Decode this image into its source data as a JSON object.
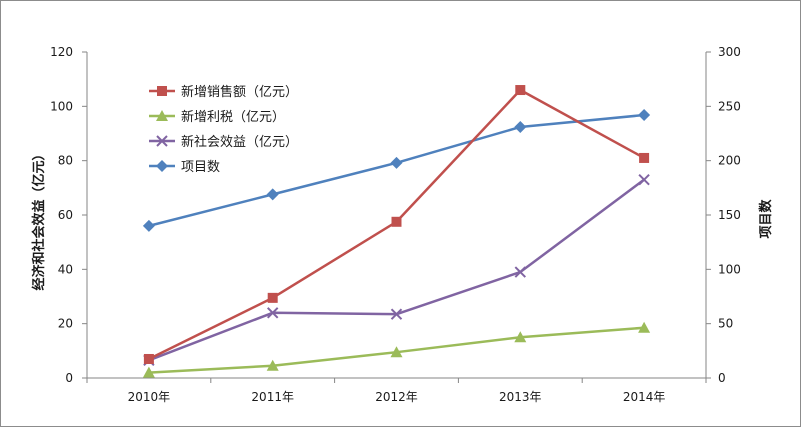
{
  "chart_data": {
    "type": "line",
    "categories": [
      "2010年",
      "2011年",
      "2012年",
      "2013年",
      "2014年"
    ],
    "ylabel": "经济和社会效益（亿元）",
    "y2label": "项目数",
    "ylim": [
      0,
      120
    ],
    "yticks": [
      0,
      20,
      40,
      60,
      80,
      100,
      120
    ],
    "y2lim": [
      0,
      300
    ],
    "y2ticks": [
      0,
      50,
      100,
      150,
      200,
      250,
      300
    ],
    "grid": false,
    "legend_position": "top-left",
    "series": [
      {
        "name": "新增销售额（亿元）",
        "axis": "left",
        "color": "#c0504d",
        "marker": "square",
        "values": [
          7,
          29.5,
          57.5,
          106,
          81
        ]
      },
      {
        "name": "新增利税（亿元）",
        "axis": "left",
        "color": "#9bbb59",
        "marker": "triangle",
        "values": [
          2,
          4.5,
          9.5,
          15,
          18.5
        ]
      },
      {
        "name": "新社会效益（亿元）",
        "axis": "left",
        "color": "#8064a2",
        "marker": "x",
        "values": [
          6.5,
          24,
          23.5,
          39,
          73
        ]
      },
      {
        "name": "项目数",
        "axis": "right",
        "color": "#4f81bd",
        "marker": "diamond",
        "values": [
          140,
          169,
          198,
          231,
          242
        ]
      }
    ]
  }
}
